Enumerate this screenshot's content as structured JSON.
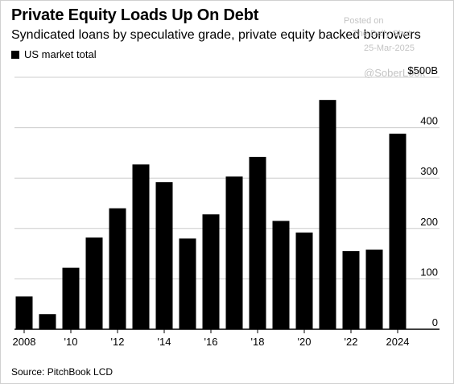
{
  "header": {
    "title": "Private Equity Loads Up On Debt",
    "subtitle": "Syndicated loans by speculative grade, private equity backed borrowers"
  },
  "legend": {
    "label": "US market total",
    "color": "#000000"
  },
  "source": "Source: PitchBook LCD",
  "watermark": {
    "posted": "Posted on",
    "site": "The Daily Shot",
    "date": "25-Mar-2025",
    "handle": "@SoberLook"
  },
  "chart_data": {
    "type": "bar",
    "x": [
      2008,
      2009,
      2010,
      2011,
      2012,
      2013,
      2014,
      2015,
      2016,
      2017,
      2018,
      2019,
      2020,
      2021,
      2022,
      2023,
      2024
    ],
    "values": [
      65,
      30,
      122,
      182,
      240,
      327,
      292,
      180,
      228,
      303,
      342,
      215,
      192,
      455,
      155,
      158,
      388
    ],
    "x_tick_labels": [
      {
        "x": 2008,
        "label": "2008"
      },
      {
        "x": 2010,
        "label": "'10"
      },
      {
        "x": 2012,
        "label": "'12"
      },
      {
        "x": 2014,
        "label": "'14"
      },
      {
        "x": 2016,
        "label": "'16"
      },
      {
        "x": 2018,
        "label": "'18"
      },
      {
        "x": 2020,
        "label": "'20"
      },
      {
        "x": 2022,
        "label": "'22"
      },
      {
        "x": 2024,
        "label": "2024"
      }
    ],
    "y_ticks": [
      {
        "value": 0,
        "label": "0"
      },
      {
        "value": 100,
        "label": "100"
      },
      {
        "value": 200,
        "label": "200"
      },
      {
        "value": 300,
        "label": "300"
      },
      {
        "value": 400,
        "label": "400"
      },
      {
        "value": 500,
        "label": "$500B"
      }
    ],
    "ylim": [
      0,
      500
    ],
    "y_axis_side": "right",
    "grid": true,
    "bar_color": "#000000",
    "grid_color": "#cccccc"
  }
}
